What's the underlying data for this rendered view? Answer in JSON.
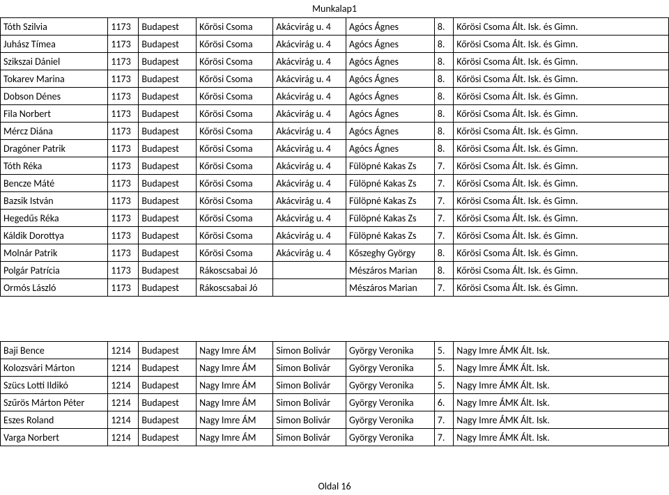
{
  "header": "Munkalap1",
  "footer": "Oldal 16",
  "rows": [
    {
      "name": "Tóth Szilvia",
      "zip": "1173",
      "city": "Budapest",
      "inst": "Kőrösi Csoma",
      "addr": "Akácvirág u. 4",
      "teacher": "Agócs Ágnes",
      "grade": "8.",
      "school": "Kőrösi Csoma Ált. Isk. és Gimn."
    },
    {
      "name": "Juhász Tímea",
      "zip": "1173",
      "city": "Budapest",
      "inst": "Kőrösi Csoma",
      "addr": "Akácvirág u. 4",
      "teacher": "Agócs Ágnes",
      "grade": "8.",
      "school": "Kőrösi Csoma Ált. Isk. és Gimn."
    },
    {
      "name": "Szikszai Dániel",
      "zip": "1173",
      "city": "Budapest",
      "inst": "Kőrösi Csoma",
      "addr": "Akácvirág u. 4",
      "teacher": "Agócs Ágnes",
      "grade": "8.",
      "school": "Kőrösi Csoma Ált. Isk. és Gimn."
    },
    {
      "name": "Tokarev Marina",
      "zip": "1173",
      "city": "Budapest",
      "inst": "Kőrösi Csoma",
      "addr": "Akácvirág u. 4",
      "teacher": "Agócs Ágnes",
      "grade": "8.",
      "school": "Kőrösi Csoma Ált. Isk. és Gimn."
    },
    {
      "name": "Dobson Dénes",
      "zip": "1173",
      "city": "Budapest",
      "inst": "Kőrösi Csoma",
      "addr": "Akácvirág u. 4",
      "teacher": "Agócs Ágnes",
      "grade": "8.",
      "school": "Kőrösi Csoma Ált. Isk. és Gimn."
    },
    {
      "name": "Fila Norbert",
      "zip": "1173",
      "city": "Budapest",
      "inst": "Kőrösi Csoma",
      "addr": "Akácvirág u. 4",
      "teacher": "Agócs Ágnes",
      "grade": "8.",
      "school": "Kőrösi Csoma Ált. Isk. és Gimn."
    },
    {
      "name": "Mércz Diána",
      "zip": "1173",
      "city": "Budapest",
      "inst": "Kőrösi Csoma",
      "addr": "Akácvirág u. 4",
      "teacher": "Agócs Ágnes",
      "grade": "8.",
      "school": "Kőrösi Csoma Ált. Isk. és Gimn."
    },
    {
      "name": "Dragóner Patrik",
      "zip": "1173",
      "city": "Budapest",
      "inst": "Kőrösi Csoma",
      "addr": "Akácvirág u. 4",
      "teacher": "Agócs Ágnes",
      "grade": "8.",
      "school": "Kőrösi Csoma Ált. Isk. és Gimn."
    },
    {
      "name": "Tóth Réka",
      "zip": "1173",
      "city": "Budapest",
      "inst": "Kőrösi Csoma",
      "addr": "Akácvirág u. 4",
      "teacher": "Fülöpné Kakas Zs",
      "grade": "7.",
      "school": "Kőrösi Csoma Ált. Isk. és Gimn."
    },
    {
      "name": "Bencze Máté",
      "zip": "1173",
      "city": "Budapest",
      "inst": "Kőrösi Csoma",
      "addr": "Akácvirág u. 4",
      "teacher": "Fülöpné Kakas Zs",
      "grade": "7.",
      "school": "Kőrösi Csoma Ált. Isk. és Gimn."
    },
    {
      "name": "Bazsik István",
      "zip": "1173",
      "city": "Budapest",
      "inst": "Kőrösi Csoma",
      "addr": "Akácvirág u. 4",
      "teacher": "Fülöpné Kakas Zs",
      "grade": "7.",
      "school": "Kőrösi Csoma Ált. Isk. és Gimn."
    },
    {
      "name": "Hegedűs Réka",
      "zip": "1173",
      "city": "Budapest",
      "inst": "Kőrösi Csoma",
      "addr": "Akácvirág u. 4",
      "teacher": "Fülöpné Kakas Zs",
      "grade": "7.",
      "school": "Kőrösi Csoma Ált. Isk. és Gimn."
    },
    {
      "name": "Káldik Dorottya",
      "zip": "1173",
      "city": "Budapest",
      "inst": "Kőrösi Csoma",
      "addr": "Akácvirág u. 4",
      "teacher": "Fülöpné Kakas Zs",
      "grade": "7.",
      "school": "Kőrösi Csoma Ált. Isk. és Gimn."
    },
    {
      "name": "Molnár Patrik",
      "zip": "1173",
      "city": "Budapest",
      "inst": "Kőrösi Csoma",
      "addr": "Akácvirág u. 4",
      "teacher": "Kőszeghy György",
      "grade": "8.",
      "school": "Kőrösi Csoma Ált. Isk. és Gimn."
    },
    {
      "name": "Polgár Patrícia",
      "zip": "1173",
      "city": "Budapest",
      "inst": "Rákoscsabai Jó",
      "addr": "",
      "teacher": "Mészáros Marian",
      "grade": "8.",
      "school": "Kőrösi Csoma Ált. Isk. és Gimn."
    },
    {
      "name": "Ormós László",
      "zip": "1173",
      "city": "Budapest",
      "inst": "Rákoscsabai Jó",
      "addr": "",
      "teacher": "Mészáros Marian",
      "grade": "7.",
      "school": "Kőrösi Csoma Ált. Isk. és Gimn."
    }
  ],
  "rows2": [
    {
      "name": "Baji Bence",
      "zip": "1214",
      "city": "Budapest",
      "inst": "Nagy Imre ÁM",
      "addr": "Simon Bolivár",
      "teacher": "György Veronika",
      "grade": "5.",
      "school": "Nagy Imre ÁMK Ált. Isk."
    },
    {
      "name": "Kolozsvári Márton",
      "zip": "1214",
      "city": "Budapest",
      "inst": "Nagy Imre ÁM",
      "addr": "Simon Bolivár",
      "teacher": "György Veronika",
      "grade": "5.",
      "school": "Nagy Imre ÁMK Ált. Isk."
    },
    {
      "name": "Szücs Lotti Ildikó",
      "zip": "1214",
      "city": "Budapest",
      "inst": "Nagy Imre ÁM",
      "addr": "Simon Bolivár",
      "teacher": "György Veronika",
      "grade": "5.",
      "school": "Nagy Imre ÁMK Ált. Isk."
    },
    {
      "name": "Szűrös Márton Péter",
      "zip": "1214",
      "city": "Budapest",
      "inst": "Nagy Imre ÁM",
      "addr": "Simon Bolivár",
      "teacher": "György Veronika",
      "grade": "6.",
      "school": "Nagy Imre ÁMK Ált. Isk."
    },
    {
      "name": "Eszes Roland",
      "zip": "1214",
      "city": "Budapest",
      "inst": "Nagy Imre ÁM",
      "addr": "Simon Bolivár",
      "teacher": "György Veronika",
      "grade": "7.",
      "school": "Nagy Imre ÁMK Ált. Isk."
    },
    {
      "name": "Varga Norbert",
      "zip": "1214",
      "city": "Budapest",
      "inst": "Nagy Imre ÁM",
      "addr": "Simon Bolivár",
      "teacher": "György Veronika",
      "grade": "7.",
      "school": "Nagy Imre ÁMK Ált. Isk."
    }
  ]
}
